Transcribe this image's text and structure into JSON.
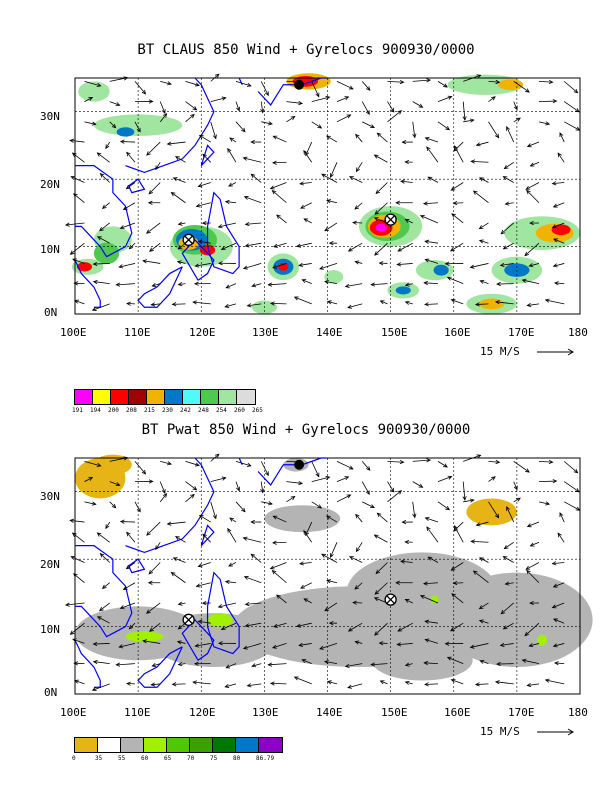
{
  "panels": [
    {
      "title": "BT CLAUS 850 Wind + Gyrelocs 900930/0000",
      "field": "claus",
      "colorbar": {
        "colors": [
          "#ff00ff",
          "#ffff00",
          "#ff0000",
          "#a00000",
          "#f0b400",
          "#0078c8",
          "#50fafa",
          "#50c850",
          "#a0e6a0",
          "#dcdcdc"
        ],
        "labels": [
          "191",
          "194",
          "200",
          "208",
          "215",
          "230",
          "242",
          "248",
          "254",
          "260",
          "265"
        ]
      }
    },
    {
      "title": "BT Pwat 850 Wind + Gyrelocs 900930/0000",
      "field": "pwat",
      "colorbar": {
        "colors": [
          "#e6b414",
          "#ffffff",
          "#b4b4b4",
          "#a0f000",
          "#50c800",
          "#3ca000",
          "#007800",
          "#0078c8",
          "#8c00c8"
        ],
        "labels": [
          "0",
          "35",
          "55",
          "60",
          "65",
          "70",
          "75",
          "80",
          "86.79"
        ]
      }
    }
  ],
  "axes": {
    "x_labels": [
      "100E",
      "110E",
      "120E",
      "130E",
      "140E",
      "150E",
      "160E",
      "170E",
      "180"
    ],
    "y_labels": [
      "0N",
      "10N",
      "20N",
      "30N"
    ],
    "xlim": [
      100,
      180
    ],
    "ylim": [
      0,
      35
    ]
  },
  "wind_reference": "15 M/S",
  "gyre_locations": [
    {
      "lon": 118,
      "lat": 11
    },
    {
      "lon": 150,
      "lat": 14
    }
  ],
  "colors": {
    "coast": "#0000ff",
    "grid": "#000000"
  }
}
